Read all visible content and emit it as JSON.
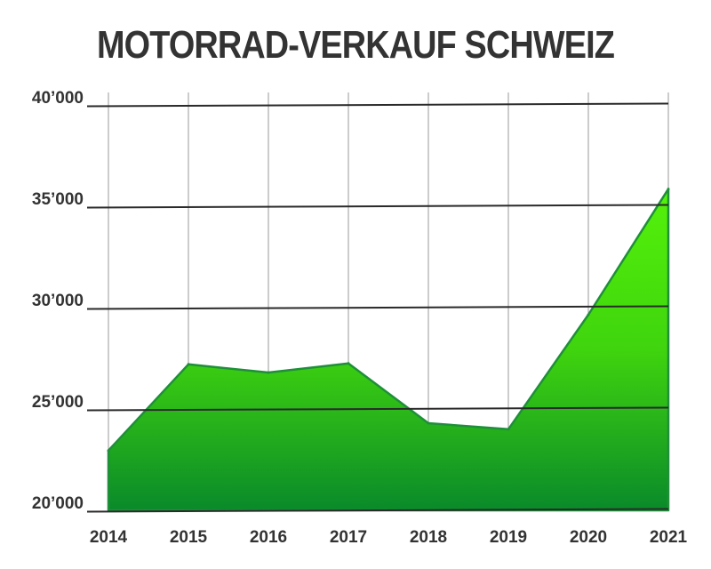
{
  "chart_data": {
    "type": "area",
    "title": "MOTORRAD-VERKAUF SCHWEIZ",
    "xlabel": "",
    "ylabel": "",
    "categories": [
      "2014",
      "2015",
      "2016",
      "2017",
      "2018",
      "2019",
      "2020",
      "2021"
    ],
    "values": [
      22950,
      27200,
      26800,
      27250,
      24300,
      24000,
      29650,
      35850
    ],
    "ylim": [
      20000,
      40000
    ],
    "yticks": [
      20000,
      25000,
      30000,
      35000,
      40000
    ],
    "ytick_labels": [
      "20’000",
      "25’000",
      "30’000",
      "35’000",
      "40’000"
    ],
    "grid": true,
    "legend": "none",
    "colors": {
      "fill_top": "#55f20a",
      "fill_mid": "#3fd40e",
      "fill_bottom": "#0a8a2a",
      "outline": "#1f8f3a",
      "gridline": "#2a2a2a",
      "vertical_grid": "#9a9a9a",
      "text": "#333333"
    }
  }
}
